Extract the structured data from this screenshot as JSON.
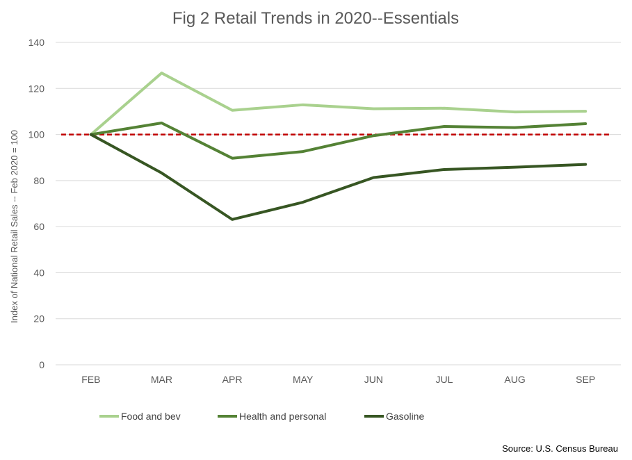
{
  "chart_data": {
    "type": "line",
    "title": "Fig 2 Retail Trends in 2020--Essentials",
    "xlabel": "",
    "ylabel": "Index of National Retail Sales -- Feb 2020 = 100",
    "categories": [
      "FEB",
      "MAR",
      "APR",
      "MAY",
      "JUN",
      "JUL",
      "AUG",
      "SEP"
    ],
    "ylim": [
      0,
      140
    ],
    "yticks": [
      "0",
      "20",
      "40",
      "60",
      "80",
      "100",
      "120",
      "140"
    ],
    "grid": true,
    "legend_position": "bottom-left",
    "reference_line": {
      "value": 100,
      "color": "#c00000",
      "style": "dashed"
    },
    "series": [
      {
        "name": "Food and bev",
        "color": "#a9d18e",
        "values": [
          100,
          126.7,
          110.5,
          112.9,
          111.2,
          111.4,
          109.8,
          110.1
        ]
      },
      {
        "name": "Health and personal",
        "color": "#548235",
        "values": [
          100,
          105,
          89.7,
          92.6,
          99.5,
          103.5,
          103,
          104.7
        ]
      },
      {
        "name": "Gasoline",
        "color": "#375623",
        "values": [
          100,
          83.3,
          63.1,
          70.6,
          81.3,
          84.8,
          85.8,
          87
        ]
      }
    ],
    "source": "Source: U.S. Census Bureau"
  }
}
